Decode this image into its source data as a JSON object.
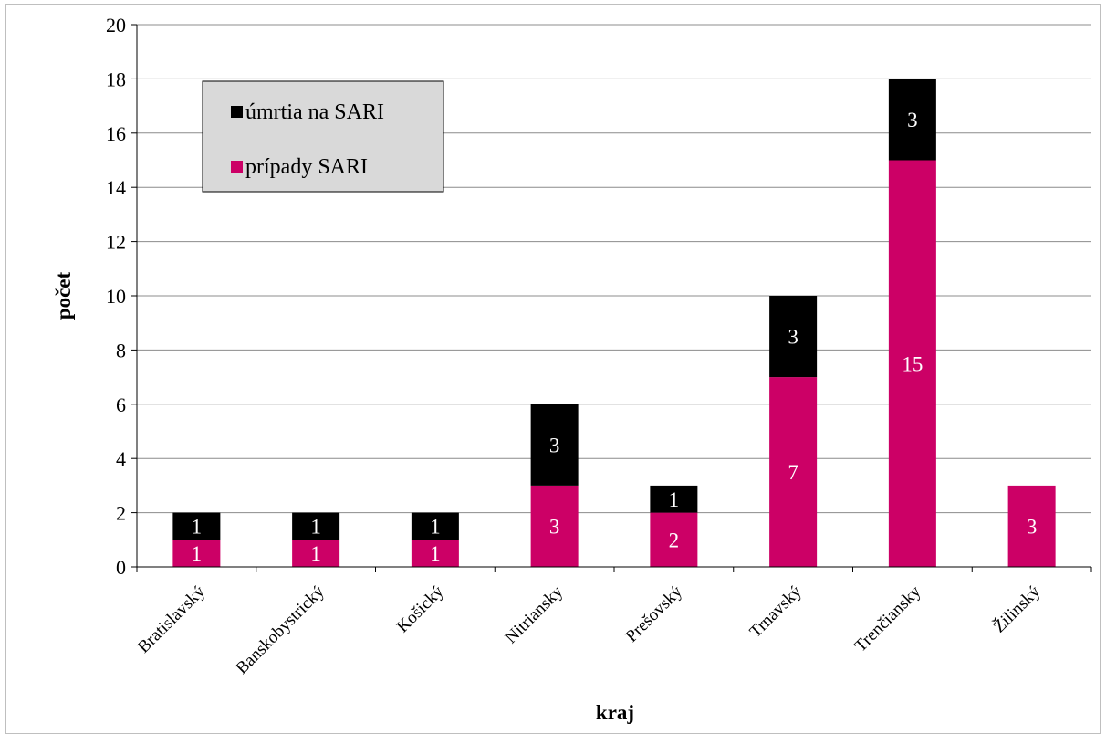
{
  "chart_data": {
    "type": "bar",
    "stacked": true,
    "xlabel": "kraj",
    "ylabel": "počet",
    "ylim": [
      0,
      20
    ],
    "y_ticks": [
      0,
      2,
      4,
      6,
      8,
      10,
      12,
      14,
      16,
      18,
      20
    ],
    "grid": true,
    "legend_position": "top-left",
    "categories": [
      "Bratislavský",
      "Banskobystrický",
      "Košický",
      "Nitriansky",
      "Prešovský",
      "Trnavský",
      "Trenčiansky",
      "Žilinský"
    ],
    "series": [
      {
        "name": "prípady SARI",
        "color": "#cc0066",
        "label_color": "#ffffff",
        "values": [
          1,
          1,
          1,
          3,
          2,
          7,
          15,
          3
        ]
      },
      {
        "name": "úmrtia na SARI",
        "color": "#000000",
        "label_color": "#ffffff",
        "values": [
          1,
          1,
          1,
          3,
          1,
          3,
          3,
          0
        ]
      }
    ],
    "legend_order": [
      1,
      0
    ]
  }
}
